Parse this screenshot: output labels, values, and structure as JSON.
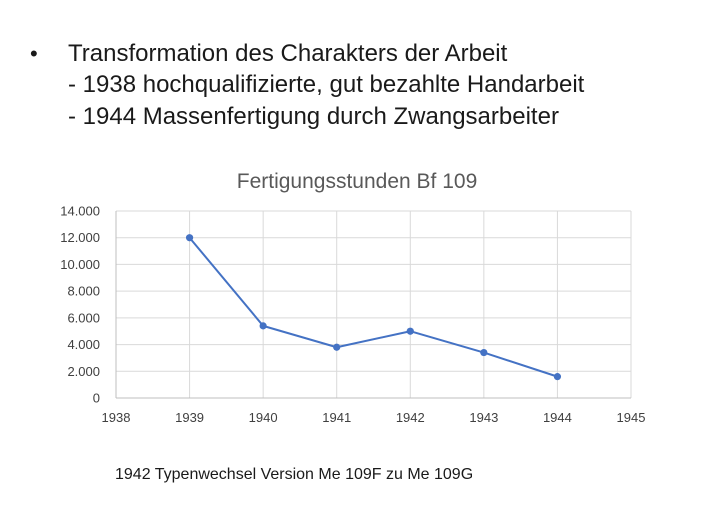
{
  "slide": {
    "bullet_symbol": "•",
    "heading": "Transformation des Charakters der Arbeit",
    "sub_items": [
      "- 1938 hochqualifizierte, gut bezahlte Handarbeit",
      "- 1944 Massenfertigung durch Zwangsarbeiter"
    ],
    "footnote": "1942 Typenwechsel Version Me 109F zu Me 109G"
  },
  "chart_data": {
    "type": "line",
    "title": "Fertigungsstunden Bf 109",
    "xlabel": "",
    "ylabel": "",
    "x": [
      1939,
      1940,
      1941,
      1942,
      1943,
      1944
    ],
    "series": [
      {
        "values": [
          12000,
          5400,
          3800,
          5000,
          3400,
          1600
        ]
      }
    ],
    "xlim": [
      1938,
      1945
    ],
    "ylim": [
      0,
      14000
    ],
    "x_ticks": [
      "1938",
      "1939",
      "1940",
      "1941",
      "1942",
      "1943",
      "1944",
      "1945"
    ],
    "y_ticks": [
      "0",
      "2.000",
      "4.000",
      "6.000",
      "8.000",
      "10.000",
      "12.000",
      "14.000"
    ],
    "grid": true,
    "legend": "none",
    "colors": {
      "line": "#4472C4",
      "grid": "#d9d9d9",
      "axis": "#bfbfbf"
    }
  }
}
